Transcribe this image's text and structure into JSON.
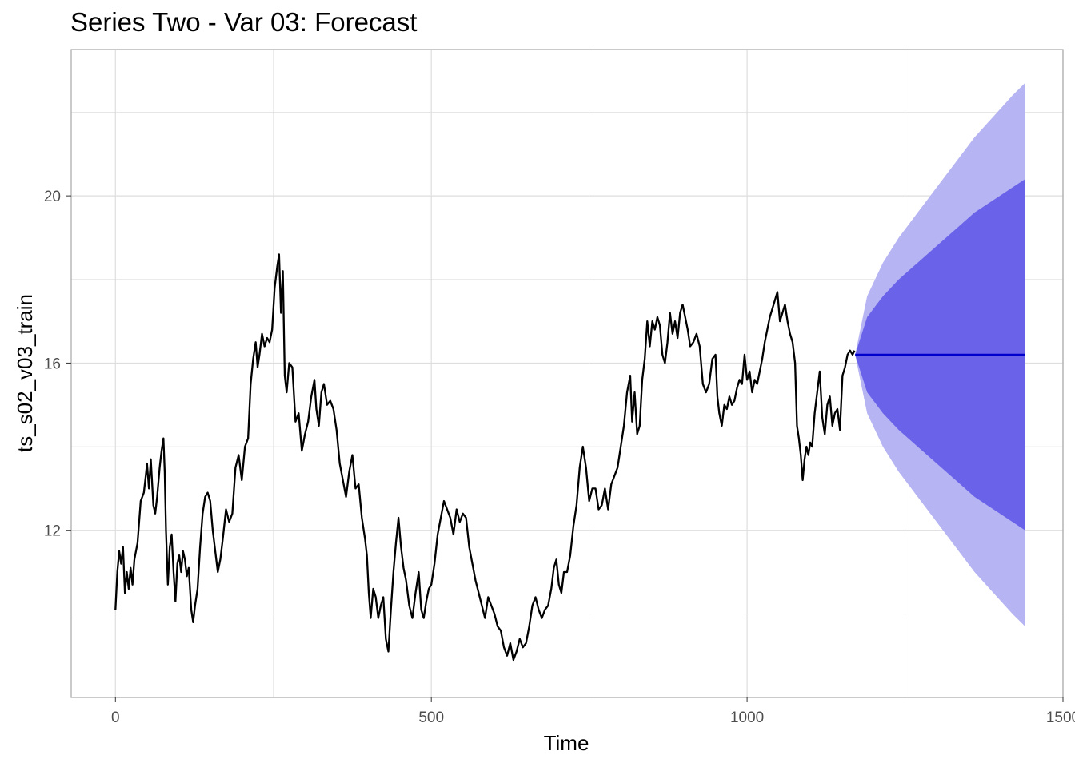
{
  "chart_data": {
    "type": "line",
    "title": "Series Two - Var 03: Forecast",
    "xlabel": "Time",
    "ylabel": "ts_s02_v03_train",
    "xlim": [
      -70,
      1500
    ],
    "ylim": [
      8.0,
      23.5
    ],
    "x_ticks": [
      0,
      500,
      1000,
      1500
    ],
    "y_ticks": [
      12,
      16,
      20
    ],
    "grid": true,
    "colors": {
      "history": "#000000",
      "forecast": "#0000cc",
      "band_80": "#6a63ea",
      "band_95": "#b6b4f3",
      "grid": "#dedede",
      "panel_border": "#a6a6a6"
    },
    "series": [
      {
        "values": [
          [
            0,
            10.1
          ],
          [
            3,
            11.0
          ],
          [
            6,
            11.5
          ],
          [
            9,
            11.2
          ],
          [
            12,
            11.6
          ],
          [
            15,
            10.5
          ],
          [
            18,
            11.0
          ],
          [
            21,
            10.6
          ],
          [
            24,
            11.1
          ],
          [
            27,
            10.7
          ],
          [
            30,
            11.3
          ],
          [
            35,
            11.7
          ],
          [
            40,
            12.7
          ],
          [
            45,
            12.9
          ],
          [
            48,
            13.3
          ],
          [
            50,
            13.6
          ],
          [
            53,
            13.0
          ],
          [
            56,
            13.7
          ],
          [
            60,
            12.6
          ],
          [
            63,
            12.4
          ],
          [
            66,
            12.8
          ],
          [
            70,
            13.5
          ],
          [
            73,
            13.9
          ],
          [
            76,
            14.2
          ],
          [
            78,
            13.4
          ],
          [
            80,
            12.0
          ],
          [
            83,
            10.7
          ],
          [
            86,
            11.6
          ],
          [
            89,
            11.9
          ],
          [
            92,
            11.0
          ],
          [
            95,
            10.3
          ],
          [
            98,
            11.2
          ],
          [
            101,
            11.4
          ],
          [
            104,
            11.0
          ],
          [
            107,
            11.5
          ],
          [
            110,
            11.3
          ],
          [
            113,
            10.9
          ],
          [
            116,
            11.1
          ],
          [
            120,
            10.1
          ],
          [
            123,
            9.8
          ],
          [
            126,
            10.2
          ],
          [
            130,
            10.6
          ],
          [
            134,
            11.6
          ],
          [
            138,
            12.4
          ],
          [
            142,
            12.8
          ],
          [
            146,
            12.9
          ],
          [
            150,
            12.7
          ],
          [
            154,
            12.0
          ],
          [
            158,
            11.5
          ],
          [
            162,
            11.0
          ],
          [
            166,
            11.3
          ],
          [
            170,
            11.8
          ],
          [
            175,
            12.5
          ],
          [
            180,
            12.2
          ],
          [
            185,
            12.4
          ],
          [
            190,
            13.5
          ],
          [
            195,
            13.8
          ],
          [
            200,
            13.2
          ],
          [
            205,
            14.0
          ],
          [
            210,
            14.2
          ],
          [
            214,
            15.5
          ],
          [
            218,
            16.1
          ],
          [
            222,
            16.5
          ],
          [
            225,
            15.9
          ],
          [
            228,
            16.2
          ],
          [
            232,
            16.7
          ],
          [
            236,
            16.4
          ],
          [
            240,
            16.6
          ],
          [
            244,
            16.5
          ],
          [
            248,
            16.8
          ],
          [
            252,
            17.8
          ],
          [
            256,
            18.3
          ],
          [
            259,
            18.6
          ],
          [
            262,
            17.2
          ],
          [
            265,
            18.2
          ],
          [
            268,
            15.7
          ],
          [
            271,
            15.3
          ],
          [
            275,
            16.0
          ],
          [
            280,
            15.9
          ],
          [
            285,
            14.6
          ],
          [
            290,
            14.8
          ],
          [
            295,
            13.9
          ],
          [
            300,
            14.3
          ],
          [
            305,
            14.6
          ],
          [
            310,
            15.2
          ],
          [
            315,
            15.6
          ],
          [
            318,
            14.9
          ],
          [
            322,
            14.5
          ],
          [
            326,
            15.3
          ],
          [
            330,
            15.5
          ],
          [
            335,
            15.0
          ],
          [
            340,
            15.1
          ],
          [
            345,
            14.9
          ],
          [
            350,
            14.4
          ],
          [
            355,
            13.6
          ],
          [
            360,
            13.2
          ],
          [
            365,
            12.8
          ],
          [
            370,
            13.4
          ],
          [
            375,
            13.8
          ],
          [
            380,
            13.0
          ],
          [
            385,
            13.1
          ],
          [
            390,
            12.3
          ],
          [
            395,
            11.8
          ],
          [
            398,
            11.4
          ],
          [
            401,
            10.5
          ],
          [
            404,
            9.9
          ],
          [
            408,
            10.6
          ],
          [
            412,
            10.4
          ],
          [
            416,
            9.9
          ],
          [
            420,
            10.2
          ],
          [
            424,
            10.4
          ],
          [
            428,
            9.4
          ],
          [
            432,
            9.1
          ],
          [
            436,
            10.1
          ],
          [
            440,
            11.0
          ],
          [
            444,
            11.7
          ],
          [
            448,
            12.3
          ],
          [
            452,
            11.6
          ],
          [
            456,
            11.1
          ],
          [
            460,
            10.8
          ],
          [
            465,
            10.2
          ],
          [
            470,
            9.9
          ],
          [
            475,
            10.5
          ],
          [
            480,
            11.0
          ],
          [
            484,
            10.1
          ],
          [
            488,
            9.9
          ],
          [
            492,
            10.3
          ],
          [
            496,
            10.6
          ],
          [
            500,
            10.7
          ],
          [
            505,
            11.2
          ],
          [
            510,
            11.9
          ],
          [
            515,
            12.3
          ],
          [
            520,
            12.7
          ],
          [
            525,
            12.5
          ],
          [
            530,
            12.3
          ],
          [
            535,
            11.9
          ],
          [
            540,
            12.5
          ],
          [
            545,
            12.2
          ],
          [
            550,
            12.4
          ],
          [
            555,
            12.3
          ],
          [
            560,
            11.6
          ],
          [
            565,
            11.2
          ],
          [
            570,
            10.8
          ],
          [
            575,
            10.5
          ],
          [
            580,
            10.2
          ],
          [
            585,
            9.9
          ],
          [
            590,
            10.4
          ],
          [
            595,
            10.2
          ],
          [
            600,
            10.0
          ],
          [
            605,
            9.7
          ],
          [
            610,
            9.6
          ],
          [
            615,
            9.2
          ],
          [
            620,
            9.0
          ],
          [
            625,
            9.3
          ],
          [
            630,
            8.9
          ],
          [
            635,
            9.1
          ],
          [
            640,
            9.4
          ],
          [
            645,
            9.2
          ],
          [
            650,
            9.3
          ],
          [
            655,
            9.7
          ],
          [
            660,
            10.2
          ],
          [
            665,
            10.4
          ],
          [
            670,
            10.1
          ],
          [
            675,
            9.9
          ],
          [
            680,
            10.1
          ],
          [
            685,
            10.2
          ],
          [
            690,
            10.6
          ],
          [
            694,
            11.1
          ],
          [
            698,
            11.3
          ],
          [
            702,
            10.7
          ],
          [
            706,
            10.5
          ],
          [
            710,
            11.0
          ],
          [
            715,
            11.0
          ],
          [
            720,
            11.4
          ],
          [
            725,
            12.1
          ],
          [
            730,
            12.6
          ],
          [
            735,
            13.5
          ],
          [
            740,
            14.0
          ],
          [
            745,
            13.5
          ],
          [
            750,
            12.7
          ],
          [
            755,
            13.0
          ],
          [
            760,
            13.0
          ],
          [
            765,
            12.5
          ],
          [
            770,
            12.6
          ],
          [
            775,
            13.0
          ],
          [
            780,
            12.5
          ],
          [
            785,
            13.1
          ],
          [
            790,
            13.3
          ],
          [
            795,
            13.5
          ],
          [
            800,
            14.0
          ],
          [
            805,
            14.5
          ],
          [
            810,
            15.3
          ],
          [
            815,
            15.7
          ],
          [
            818,
            14.6
          ],
          [
            822,
            15.3
          ],
          [
            826,
            14.3
          ],
          [
            830,
            14.5
          ],
          [
            834,
            15.6
          ],
          [
            838,
            16.1
          ],
          [
            842,
            17.0
          ],
          [
            846,
            16.4
          ],
          [
            850,
            17.0
          ],
          [
            854,
            16.8
          ],
          [
            858,
            17.1
          ],
          [
            862,
            16.9
          ],
          [
            866,
            16.2
          ],
          [
            870,
            16.0
          ],
          [
            874,
            16.5
          ],
          [
            878,
            17.2
          ],
          [
            882,
            16.7
          ],
          [
            886,
            17.0
          ],
          [
            890,
            16.6
          ],
          [
            894,
            17.2
          ],
          [
            898,
            17.4
          ],
          [
            902,
            17.1
          ],
          [
            906,
            16.8
          ],
          [
            910,
            16.4
          ],
          [
            915,
            16.5
          ],
          [
            920,
            16.7
          ],
          [
            925,
            16.4
          ],
          [
            930,
            15.5
          ],
          [
            935,
            15.3
          ],
          [
            940,
            15.5
          ],
          [
            945,
            16.1
          ],
          [
            950,
            16.2
          ],
          [
            953,
            15.2
          ],
          [
            956,
            14.8
          ],
          [
            960,
            14.5
          ],
          [
            964,
            15.0
          ],
          [
            968,
            14.9
          ],
          [
            972,
            15.2
          ],
          [
            976,
            15.0
          ],
          [
            980,
            15.1
          ],
          [
            984,
            15.4
          ],
          [
            988,
            15.6
          ],
          [
            992,
            15.5
          ],
          [
            996,
            16.2
          ],
          [
            1000,
            15.6
          ],
          [
            1004,
            15.8
          ],
          [
            1008,
            15.3
          ],
          [
            1012,
            15.6
          ],
          [
            1016,
            15.5
          ],
          [
            1020,
            15.8
          ],
          [
            1024,
            16.1
          ],
          [
            1028,
            16.5
          ],
          [
            1032,
            16.8
          ],
          [
            1036,
            17.1
          ],
          [
            1040,
            17.3
          ],
          [
            1044,
            17.5
          ],
          [
            1048,
            17.7
          ],
          [
            1052,
            17.0
          ],
          [
            1056,
            17.2
          ],
          [
            1060,
            17.4
          ],
          [
            1064,
            17.0
          ],
          [
            1068,
            16.7
          ],
          [
            1072,
            16.5
          ],
          [
            1076,
            16.0
          ],
          [
            1079,
            14.5
          ],
          [
            1082,
            14.2
          ],
          [
            1085,
            13.8
          ],
          [
            1088,
            13.2
          ],
          [
            1091,
            13.7
          ],
          [
            1094,
            14.0
          ],
          [
            1097,
            13.8
          ],
          [
            1100,
            14.1
          ],
          [
            1103,
            14.0
          ],
          [
            1107,
            14.8
          ],
          [
            1111,
            15.3
          ],
          [
            1115,
            15.8
          ],
          [
            1119,
            14.7
          ],
          [
            1123,
            14.3
          ],
          [
            1127,
            15.0
          ],
          [
            1131,
            15.2
          ],
          [
            1135,
            14.5
          ],
          [
            1139,
            14.8
          ],
          [
            1143,
            14.9
          ],
          [
            1147,
            14.4
          ],
          [
            1151,
            15.7
          ],
          [
            1155,
            15.9
          ],
          [
            1159,
            16.2
          ],
          [
            1163,
            16.3
          ],
          [
            1167,
            16.2
          ],
          [
            1170,
            16.3
          ]
        ]
      },
      {
        "values": [
          [
            1171,
            16.2
          ],
          [
            1440,
            16.2
          ]
        ]
      }
    ],
    "bands": [
      {
        "level": 95,
        "x": [
          1171,
          1190,
          1215,
          1240,
          1270,
          1300,
          1330,
          1360,
          1390,
          1420,
          1440
        ],
        "lower": [
          16.2,
          14.8,
          14.0,
          13.4,
          12.8,
          12.2,
          11.6,
          11.0,
          10.5,
          10.0,
          9.7
        ],
        "upper": [
          16.2,
          17.6,
          18.4,
          19.0,
          19.6,
          20.2,
          20.8,
          21.4,
          21.9,
          22.4,
          22.7
        ]
      },
      {
        "level": 80,
        "x": [
          1171,
          1190,
          1215,
          1240,
          1270,
          1300,
          1330,
          1360,
          1390,
          1420,
          1440
        ],
        "lower": [
          16.2,
          15.3,
          14.8,
          14.4,
          14.0,
          13.6,
          13.2,
          12.8,
          12.5,
          12.2,
          12.0
        ],
        "upper": [
          16.2,
          17.1,
          17.6,
          18.0,
          18.4,
          18.8,
          19.2,
          19.6,
          19.9,
          20.2,
          20.4
        ]
      }
    ]
  }
}
